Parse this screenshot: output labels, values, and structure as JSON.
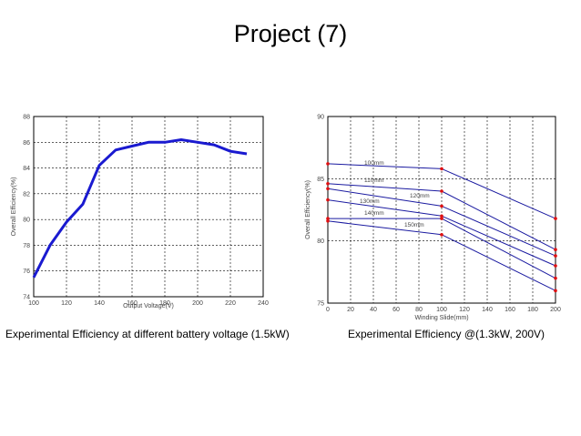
{
  "slide": {
    "title": "Project (7)",
    "caption_left": "Experimental Efficiency at different battery voltage (1.5kW)",
    "caption_right": "Experimental Efficiency @(1.3kW, 200V)"
  },
  "chart_data": [
    {
      "type": "line",
      "xlabel": "Output Voltage(V)",
      "ylabel": "Overall Efficiency(%)",
      "xlim": [
        100,
        240
      ],
      "ylim": [
        74,
        88
      ],
      "xticks": [
        "100",
        "120",
        "140",
        "160",
        "180",
        "200",
        "220",
        "240"
      ],
      "yticks": [
        "74",
        "76",
        "78",
        "80",
        "82",
        "84",
        "86",
        "88"
      ],
      "grid": true,
      "series": [
        {
          "color": "#1a1ad0",
          "x": [
            100,
            110,
            120,
            130,
            140,
            150,
            160,
            170,
            180,
            190,
            200,
            210,
            220,
            230
          ],
          "y": [
            75.5,
            78.0,
            79.8,
            81.2,
            84.2,
            85.4,
            85.7,
            86.0,
            86.0,
            86.2,
            86.0,
            85.8,
            85.3,
            85.1
          ]
        }
      ]
    },
    {
      "type": "line",
      "xlabel": "Winding Slide(mm)",
      "ylabel": "Overall Efficiency(%)",
      "xlim": [
        0,
        200
      ],
      "ylim": [
        75,
        90
      ],
      "xticks": [
        "0",
        "20",
        "40",
        "60",
        "80",
        "100",
        "120",
        "140",
        "160",
        "180",
        "200"
      ],
      "yticks": [
        "75",
        "80",
        "85",
        "90"
      ],
      "grid": true,
      "series": [
        {
          "name": "100mm",
          "color": "#1a1aa0",
          "x": [
            0,
            100,
            200
          ],
          "y": [
            86.2,
            85.8,
            81.8
          ]
        },
        {
          "name": "110mm",
          "color": "#1a1aa0",
          "x": [
            0,
            100,
            200
          ],
          "y": [
            84.6,
            84.0,
            79.3
          ]
        },
        {
          "name": "120mm",
          "color": "#1a1aa0",
          "x": [
            0,
            100,
            200
          ],
          "y": [
            84.2,
            82.8,
            78.8
          ]
        },
        {
          "name": "130mm",
          "color": "#1a1aa0",
          "x": [
            0,
            100,
            200
          ],
          "y": [
            83.3,
            82.0,
            78.0
          ]
        },
        {
          "name": "140mm",
          "color": "#1a1aa0",
          "x": [
            0,
            100,
            200
          ],
          "y": [
            81.8,
            81.8,
            77.0
          ]
        },
        {
          "name": "150mm",
          "color": "#1a1aa0",
          "x": [
            0,
            100,
            200
          ],
          "y": [
            81.6,
            80.5,
            76.0
          ]
        }
      ]
    }
  ]
}
